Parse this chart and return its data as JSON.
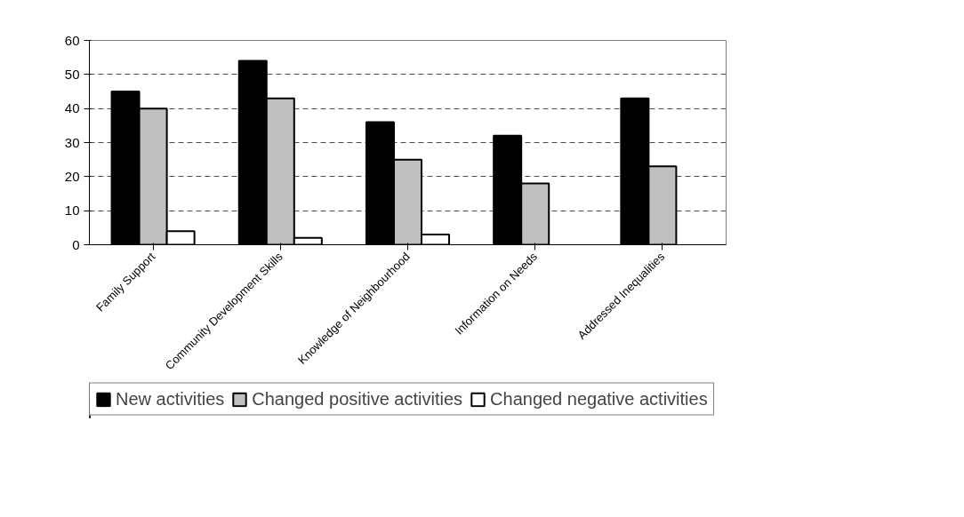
{
  "chart_data": {
    "type": "bar",
    "categories": [
      "Family Support",
      "Community Development Skills",
      "Knowledge of Neighbourhood",
      "Information on Needs",
      "Addressed Inequalities"
    ],
    "series": [
      {
        "name": "New activities",
        "color": "#000000",
        "values": [
          45,
          54,
          36,
          32,
          43
        ]
      },
      {
        "name": "Changed positive activities",
        "color": "#c0c0c0",
        "values": [
          40,
          43,
          25,
          18,
          23
        ]
      },
      {
        "name": "Changed negative activities",
        "color": "#ffffff",
        "values": [
          4,
          2,
          3,
          null,
          null
        ]
      }
    ],
    "ylim": [
      0,
      60
    ],
    "yticks": [
      0,
      10,
      20,
      30,
      40,
      50,
      60
    ],
    "grid": "y",
    "legend": "bottom"
  }
}
